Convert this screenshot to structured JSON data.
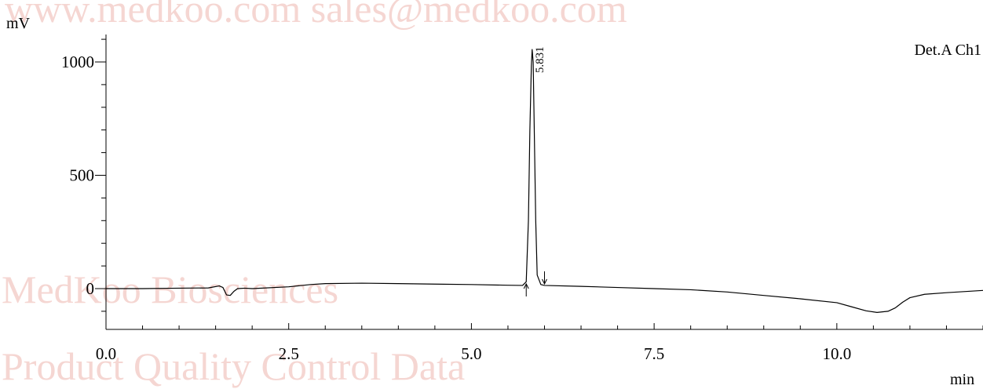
{
  "watermarks": {
    "top": "www.medkoo.com    sales@medkoo.com",
    "middle": "MedKoo Biosciences",
    "bottom": "Product Quality Control Data",
    "color": "#f5d6d2"
  },
  "chart_data": {
    "type": "line",
    "ylabel": "mV",
    "xlabel": "min",
    "legend": "Det.A Ch1",
    "xlim": [
      0,
      12.0
    ],
    "ylim": [
      -175,
      1120
    ],
    "x_ticks": [
      0.0,
      2.5,
      5.0,
      7.5,
      10.0
    ],
    "x_tick_labels": [
      "0.0",
      "2.5",
      "5.0",
      "7.5",
      "10.0"
    ],
    "y_ticks": [
      0,
      500,
      1000
    ],
    "y_tick_labels": [
      "0",
      "500",
      "1000"
    ],
    "line_color": "#000000",
    "peaks": [
      {
        "label": "5.831",
        "rt": 5.831,
        "height": 1055,
        "start": 5.75,
        "end": 6.0
      }
    ],
    "series": [
      {
        "x": [
          0.0,
          0.5,
          1.0,
          1.4,
          1.55,
          1.6,
          1.65,
          1.7,
          1.75,
          1.8,
          1.9,
          2.0,
          2.5,
          2.8,
          3.0,
          3.5,
          4.0,
          4.5,
          5.0,
          5.5,
          5.7,
          5.75,
          5.78,
          5.8,
          5.82,
          5.831,
          5.845,
          5.86,
          5.88,
          5.9,
          5.95,
          6.0,
          6.5,
          7.0,
          7.5,
          8.0,
          8.5,
          9.0,
          9.5,
          10.0,
          10.2,
          10.4,
          10.55,
          10.7,
          10.8,
          10.9,
          11.0,
          11.2,
          11.5,
          12.0
        ],
        "y": [
          0,
          0,
          2,
          3,
          12,
          5,
          -28,
          -30,
          -12,
          0,
          2,
          0,
          8,
          18,
          22,
          24,
          22,
          20,
          18,
          15,
          14,
          30,
          300,
          700,
          980,
          1055,
          1000,
          700,
          300,
          60,
          18,
          14,
          10,
          5,
          0,
          -5,
          -15,
          -30,
          -45,
          -62,
          -80,
          -98,
          -105,
          -100,
          -85,
          -60,
          -40,
          -25,
          -18,
          -8
        ]
      }
    ]
  }
}
